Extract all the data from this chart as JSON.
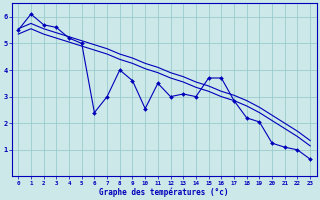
{
  "x_data": [
    0,
    1,
    2,
    3,
    4,
    5,
    6,
    7,
    8,
    9,
    10,
    11,
    12,
    13,
    14,
    15,
    16,
    17,
    18,
    19,
    20,
    21,
    22,
    23
  ],
  "y_main": [
    5.5,
    6.1,
    5.7,
    5.6,
    5.2,
    5.0,
    2.4,
    3.0,
    4.0,
    3.6,
    2.55,
    3.5,
    3.0,
    3.1,
    3.0,
    3.7,
    3.7,
    2.85,
    2.2,
    2.05,
    1.25,
    1.1,
    1.0,
    0.65
  ],
  "y_upper": [
    5.55,
    5.75,
    5.55,
    5.4,
    5.25,
    5.1,
    4.95,
    4.8,
    4.6,
    4.45,
    4.25,
    4.1,
    3.9,
    3.75,
    3.55,
    3.4,
    3.2,
    3.05,
    2.85,
    2.6,
    2.3,
    2.0,
    1.7,
    1.35
  ],
  "y_lower": [
    5.35,
    5.55,
    5.35,
    5.2,
    5.05,
    4.9,
    4.75,
    4.6,
    4.4,
    4.25,
    4.05,
    3.9,
    3.7,
    3.55,
    3.35,
    3.2,
    3.0,
    2.85,
    2.65,
    2.4,
    2.1,
    1.8,
    1.5,
    1.15
  ],
  "bg_color": "#cce8e8",
  "line_color": "#0000bb",
  "grid_color": "#99cccc",
  "xlabel": "Graphe des températures (°c)",
  "ylim": [
    0,
    6.5
  ],
  "xlim": [
    -0.5,
    23.5
  ],
  "yticks": [
    1,
    2,
    3,
    4,
    5,
    6
  ],
  "xticks": [
    0,
    1,
    2,
    3,
    4,
    5,
    6,
    7,
    8,
    9,
    10,
    11,
    12,
    13,
    14,
    15,
    16,
    17,
    18,
    19,
    20,
    21,
    22,
    23
  ]
}
